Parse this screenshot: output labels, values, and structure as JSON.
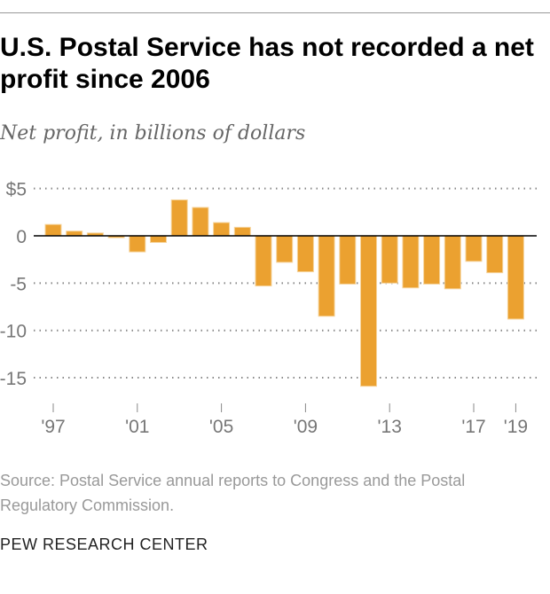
{
  "title": "U.S. Postal Service has not recorded a net profit since 2006",
  "subtitle": "Net profit, in billions of dollars",
  "source": "Source: Postal Service annual reports to Congress and the Postal Regulatory Commission.",
  "brand": "PEW RESEARCH CENTER",
  "colors": {
    "bar": "#EBA130",
    "grid": "#888888",
    "axis": "#000000"
  },
  "chart_data": {
    "type": "bar",
    "title": "U.S. Postal Service has not recorded a net profit since 2006",
    "ylabel": "Net profit, in billions of dollars",
    "xlabel": "",
    "ylim": [
      -16.5,
      5
    ],
    "grid": true,
    "categories": [
      1997,
      1998,
      1999,
      2000,
      2001,
      2002,
      2003,
      2004,
      2005,
      2006,
      2007,
      2008,
      2009,
      2010,
      2011,
      2012,
      2013,
      2014,
      2015,
      2016,
      2017,
      2018,
      2019
    ],
    "values": [
      1.2,
      0.5,
      0.3,
      -0.2,
      -1.7,
      -0.7,
      3.8,
      3.0,
      1.4,
      0.9,
      -5.3,
      -2.8,
      -3.8,
      -8.5,
      -5.1,
      -15.9,
      -5.0,
      -5.5,
      -5.1,
      -5.6,
      -2.7,
      -3.9,
      -8.8
    ],
    "yticks": [
      {
        "value": 5,
        "label": "$5"
      },
      {
        "value": 0,
        "label": "0"
      },
      {
        "value": -5,
        "label": "-5"
      },
      {
        "value": -10,
        "label": "-10"
      },
      {
        "value": -15,
        "label": "-15"
      }
    ],
    "xticks": [
      {
        "year": 1997,
        "label": "'97"
      },
      {
        "year": 2001,
        "label": "'01"
      },
      {
        "year": 2005,
        "label": "'05"
      },
      {
        "year": 2009,
        "label": "'09"
      },
      {
        "year": 2013,
        "label": "'13"
      },
      {
        "year": 2017,
        "label": "'17"
      },
      {
        "year": 2019,
        "label": "'19"
      }
    ]
  }
}
